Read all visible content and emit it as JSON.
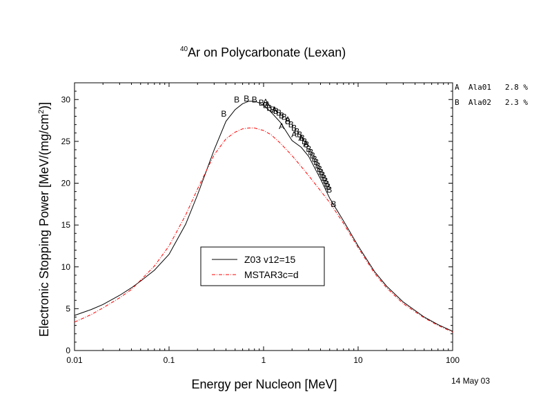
{
  "chart_data": {
    "type": "line",
    "title_super": "40",
    "title_main": "Ar on Polycarbonate (Lexan)",
    "xlabel": "Energy per Nucleon [MeV]",
    "ylabel_main": "Electronic Stopping Power [MeV/(mg/cm",
    "ylabel_super": "2",
    "ylabel_tail": ")]",
    "x_scale": "log",
    "xlim": [
      0.01,
      100
    ],
    "ylim": [
      0,
      32
    ],
    "x_ticks": [
      {
        "value": 0.01,
        "label": "0.01"
      },
      {
        "value": 0.1,
        "label": "0.1"
      },
      {
        "value": 1,
        "label": "1"
      },
      {
        "value": 10,
        "label": "10"
      },
      {
        "value": 100,
        "label": "100"
      }
    ],
    "y_ticks": [
      {
        "value": 0,
        "label": "0"
      },
      {
        "value": 5,
        "label": "5"
      },
      {
        "value": 10,
        "label": "10"
      },
      {
        "value": 15,
        "label": "15"
      },
      {
        "value": 20,
        "label": "20"
      },
      {
        "value": 25,
        "label": "25"
      },
      {
        "value": 30,
        "label": "30"
      }
    ],
    "legend_placement": "center-bottom",
    "series": [
      {
        "name": "Z03 v12=15",
        "color": "#000000",
        "style": "solid",
        "x": [
          0.01,
          0.015,
          0.02,
          0.03,
          0.04,
          0.05,
          0.07,
          0.1,
          0.15,
          0.2,
          0.3,
          0.4,
          0.5,
          0.6,
          0.7,
          0.8,
          0.9,
          1.0,
          1.2,
          1.5,
          2,
          2.5,
          3,
          4,
          5,
          7,
          10,
          15,
          20,
          30,
          50,
          70,
          100
        ],
        "y": [
          4.2,
          4.9,
          5.5,
          6.6,
          7.5,
          8.3,
          9.6,
          11.5,
          15.1,
          18.6,
          24.0,
          27.4,
          28.8,
          29.5,
          29.8,
          29.8,
          29.6,
          29.3,
          28.5,
          27.3,
          25.1,
          24.3,
          23.2,
          20.5,
          18.2,
          15.5,
          12.5,
          9.4,
          7.7,
          5.8,
          4.0,
          3.1,
          2.3
        ]
      },
      {
        "name": "MSTAR3c=d",
        "color": "#ff0000",
        "style": "dash-dot",
        "x": [
          0.01,
          0.015,
          0.02,
          0.03,
          0.04,
          0.05,
          0.07,
          0.1,
          0.15,
          0.2,
          0.3,
          0.4,
          0.5,
          0.6,
          0.7,
          0.8,
          1.0,
          1.2,
          1.5,
          2,
          2.5,
          3,
          4,
          5,
          7,
          10,
          15,
          20,
          30,
          50,
          70,
          100
        ],
        "y": [
          3.4,
          4.3,
          5.1,
          6.3,
          7.3,
          8.4,
          10.1,
          12.5,
          16.2,
          19.3,
          23.4,
          25.3,
          26.1,
          26.5,
          26.6,
          26.6,
          26.3,
          25.8,
          24.8,
          23.3,
          22.0,
          20.9,
          19.1,
          17.7,
          15.2,
          12.3,
          9.2,
          7.5,
          5.6,
          3.9,
          3.0,
          2.2
        ]
      }
    ],
    "datasets": [
      {
        "marker": "A",
        "name": "Ala01",
        "error": "2.8 %",
        "x": [
          1.05,
          1.1,
          1.3,
          1.55,
          1.8,
          2.1,
          2.5,
          2.8
        ],
        "y": [
          29.7,
          29.4,
          28.8,
          26.8,
          27.6,
          25.8,
          25.4,
          24.7
        ]
      },
      {
        "marker": "B",
        "name": "Ala02",
        "error": "2.3 %",
        "x": [
          0.38,
          0.52,
          0.66,
          0.8,
          0.95,
          1.05,
          1.15,
          1.25,
          1.35,
          1.45,
          1.55,
          1.65,
          1.8,
          1.95,
          2.1,
          2.25,
          2.4,
          2.55,
          2.7,
          2.85,
          3.0,
          3.15,
          3.3,
          3.45,
          3.6,
          3.75,
          3.9,
          4.05,
          4.2,
          4.35,
          4.5,
          4.65,
          4.8,
          4.95,
          5.5
        ],
        "y": [
          28.3,
          30.0,
          30.1,
          30.0,
          29.6,
          29.3,
          29.0,
          28.8,
          28.6,
          28.4,
          28.1,
          27.9,
          27.4,
          27.0,
          26.6,
          26.2,
          25.8,
          25.4,
          25.0,
          24.6,
          24.1,
          23.7,
          23.3,
          22.9,
          22.5,
          22.1,
          21.7,
          21.3,
          21.0,
          20.6,
          20.3,
          19.9,
          19.6,
          19.2,
          17.5
        ]
      }
    ],
    "legend_labels": {
      "A": "A  Ala01   2.8 %",
      "B": "B  Ala02   2.3 %"
    },
    "date": "14 May 03"
  }
}
